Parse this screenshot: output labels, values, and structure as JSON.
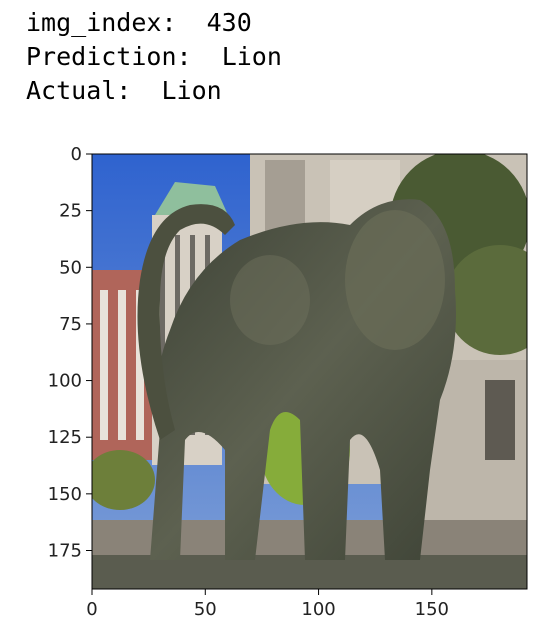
{
  "output": {
    "index_label": "img_index:",
    "index_value": "430",
    "prediction_label": "Prediction:",
    "prediction_value": "Lion",
    "actual_label": "Actual:",
    "actual_value": "Lion"
  },
  "image_axes": {
    "xlim": [
      0,
      192
    ],
    "ylim": [
      192,
      0
    ],
    "x_ticks": [
      "0",
      "50",
      "100",
      "150"
    ],
    "y_ticks": [
      "0",
      "25",
      "50",
      "75",
      "100",
      "125",
      "150",
      "175"
    ]
  },
  "colors": {
    "sky": "#3f6fd0",
    "building": "#c9c2b6",
    "statue": "#4f5243",
    "foliage": "#7aa23a"
  }
}
